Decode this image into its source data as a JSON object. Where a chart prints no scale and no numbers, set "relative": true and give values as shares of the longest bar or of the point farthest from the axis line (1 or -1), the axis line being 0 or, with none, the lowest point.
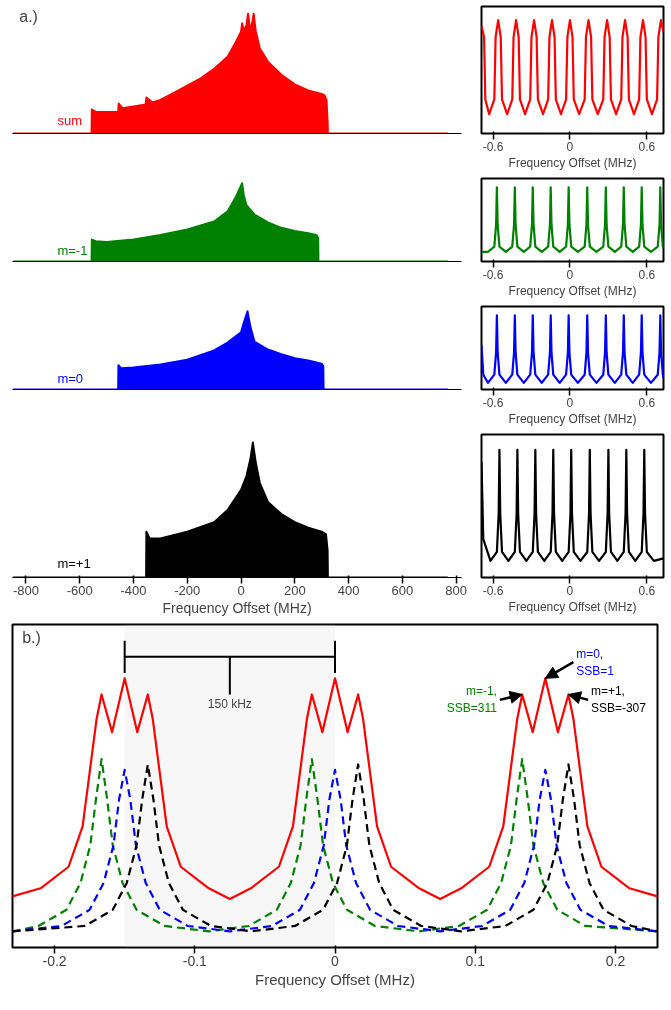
{
  "chart_data": [
    {
      "type": "area",
      "title": "a.)",
      "relative": true,
      "xlim": [
        -850,
        820
      ],
      "tick_labels": false,
      "series": [
        {
          "name": "sum",
          "color": "#ff0000",
          "x": [
            -846,
            -556,
            -555,
            -540,
            -470,
            -457,
            -455,
            -440,
            -360,
            -355,
            -352,
            -330,
            -300,
            -250,
            -200,
            -150,
            -100,
            -50,
            -20,
            0,
            4,
            10,
            20,
            26,
            32,
            40,
            47,
            55,
            70,
            100,
            150,
            200,
            250,
            300,
            310,
            318,
            322,
            323,
            767
          ],
          "values": [
            0,
            0,
            0.2,
            0.18,
            0.18,
            0.18,
            0.25,
            0.21,
            0.24,
            0.24,
            0.3,
            0.26,
            0.28,
            0.34,
            0.4,
            0.46,
            0.54,
            0.64,
            0.76,
            0.85,
            0.92,
            0.86,
            0.9,
            1.0,
            0.9,
            0.9,
            1.0,
            0.85,
            0.71,
            0.6,
            0.49,
            0.41,
            0.36,
            0.33,
            0.32,
            0.28,
            0.1,
            0,
            0
          ]
        }
      ]
    },
    {
      "type": "line",
      "relative": true,
      "xlim": [
        -0.69,
        0.73
      ],
      "xticks": [
        -0.6,
        0,
        0.6
      ],
      "xlabel": "Frequency Offset (MHz)",
      "series": [
        {
          "color": "#ff0000",
          "x": [
            -0.69,
            -0.67,
            -0.66,
            -0.63,
            -0.59,
            -0.58,
            -0.56,
            -0.54,
            -0.53,
            -0.49,
            -0.45,
            -0.44,
            -0.42,
            -0.4,
            -0.39,
            -0.35,
            -0.31,
            -0.3,
            -0.28,
            -0.26,
            -0.25,
            -0.21,
            -0.17,
            -0.16,
            -0.14,
            -0.12,
            -0.11,
            -0.07,
            -0.03,
            -0.02,
            0.0,
            0.02,
            0.03,
            0.072,
            0.115,
            0.125,
            0.145,
            0.165,
            0.175,
            0.217,
            0.26,
            0.27,
            0.29,
            0.31,
            0.32,
            0.36,
            0.4,
            0.41,
            0.43,
            0.45,
            0.46,
            0.5,
            0.54,
            0.55,
            0.57,
            0.59,
            0.6,
            0.64,
            0.68,
            0.69,
            0.71,
            0.73
          ],
          "values": [
            0.95,
            0.85,
            0.3,
            0.17,
            0.3,
            0.85,
            1,
            0.85,
            0.3,
            0.17,
            0.3,
            0.85,
            1,
            0.85,
            0.3,
            0.17,
            0.3,
            0.85,
            1,
            0.85,
            0.3,
            0.17,
            0.3,
            0.85,
            1,
            0.85,
            0.3,
            0.17,
            0.3,
            0.85,
            1,
            0.85,
            0.3,
            0.17,
            0.3,
            0.85,
            1,
            0.85,
            0.3,
            0.17,
            0.3,
            0.85,
            1,
            0.85,
            0.3,
            0.17,
            0.3,
            0.85,
            1,
            0.85,
            0.3,
            0.17,
            0.3,
            0.85,
            1,
            0.85,
            0.3,
            0.17,
            0.3,
            0.85,
            1,
            0.9
          ]
        }
      ]
    },
    {
      "type": "area",
      "relative": true,
      "xlim": [
        -850,
        820
      ],
      "tick_labels": false,
      "series": [
        {
          "name": "m=-1",
          "color": "#008000",
          "x": [
            -846,
            -556,
            -555,
            -540,
            -500,
            -400,
            -300,
            -200,
            -100,
            -50,
            -20,
            0,
            4,
            10,
            20,
            50,
            100,
            150,
            200,
            250,
            280,
            287,
            288,
            767
          ],
          "values": [
            0,
            0,
            0.28,
            0.26,
            0.25,
            0.28,
            0.34,
            0.41,
            0.51,
            0.64,
            0.82,
            0.97,
            1.0,
            0.85,
            0.72,
            0.6,
            0.5,
            0.43,
            0.39,
            0.36,
            0.34,
            0.3,
            0,
            0
          ]
        }
      ]
    },
    {
      "type": "line",
      "relative": true,
      "xlim": [
        -0.69,
        0.73
      ],
      "xticks": [
        -0.6,
        0,
        0.6
      ],
      "xlabel": "Frequency Offset (MHz)",
      "series": [
        {
          "color": "#008000",
          "x": [
            -0.69,
            -0.64,
            -0.59,
            -0.576,
            -0.57,
            -0.564,
            -0.55,
            -0.5,
            -0.45,
            -0.436,
            -0.43,
            -0.424,
            -0.41,
            -0.36,
            -0.31,
            -0.296,
            -0.29,
            -0.284,
            -0.27,
            -0.22,
            -0.17,
            -0.156,
            -0.15,
            -0.144,
            -0.13,
            -0.08,
            -0.03,
            -0.016,
            -0.01,
            -0.004,
            0.01,
            0.062,
            0.115,
            0.129,
            0.135,
            0.141,
            0.155,
            0.207,
            0.26,
            0.274,
            0.28,
            0.286,
            0.3,
            0.35,
            0.4,
            0.414,
            0.42,
            0.426,
            0.44,
            0.49,
            0.54,
            0.554,
            0.56,
            0.566,
            0.58,
            0.632,
            0.685,
            0.699,
            0.705,
            0.711,
            0.725,
            0.73
          ],
          "values": [
            0.13,
            0.13,
            0.2,
            0.5,
            1,
            0.5,
            0.2,
            0.13,
            0.2,
            0.5,
            1,
            0.5,
            0.2,
            0.13,
            0.2,
            0.5,
            1,
            0.5,
            0.2,
            0.13,
            0.2,
            0.5,
            1,
            0.5,
            0.2,
            0.13,
            0.2,
            0.5,
            1,
            0.5,
            0.2,
            0.13,
            0.2,
            0.5,
            1,
            0.5,
            0.2,
            0.13,
            0.2,
            0.5,
            1,
            0.5,
            0.2,
            0.13,
            0.2,
            0.5,
            1,
            0.5,
            0.2,
            0.13,
            0.2,
            0.5,
            1,
            0.5,
            0.2,
            0.13,
            0.2,
            0.5,
            1,
            0.5,
            0.2,
            0.18
          ]
        }
      ]
    },
    {
      "type": "area",
      "relative": true,
      "xlim": [
        -850,
        820
      ],
      "tick_labels": false,
      "series": [
        {
          "name": "m=0",
          "color": "#0000ff",
          "x": [
            -846,
            -457,
            -456,
            -445,
            -400,
            -300,
            -200,
            -100,
            -50,
            0,
            10,
            24,
            35,
            50,
            100,
            150,
            200,
            250,
            300,
            306,
            307,
            767
          ],
          "values": [
            0,
            0,
            0.31,
            0.27,
            0.28,
            0.32,
            0.38,
            0.5,
            0.6,
            0.73,
            0.85,
            1.0,
            0.8,
            0.61,
            0.51,
            0.45,
            0.4,
            0.37,
            0.33,
            0.3,
            0,
            0
          ]
        }
      ]
    },
    {
      "type": "line",
      "relative": true,
      "xlim": [
        -0.69,
        0.73
      ],
      "xticks": [
        -0.6,
        0,
        0.6
      ],
      "xlabel": "Frequency Offset (MHz)",
      "series": [
        {
          "color": "#0000ff",
          "x": [
            -0.69,
            -0.676,
            -0.64,
            -0.59,
            -0.576,
            -0.57,
            -0.564,
            -0.55,
            -0.5,
            -0.45,
            -0.436,
            -0.43,
            -0.424,
            -0.41,
            -0.36,
            -0.31,
            -0.296,
            -0.29,
            -0.284,
            -0.27,
            -0.22,
            -0.17,
            -0.156,
            -0.15,
            -0.144,
            -0.13,
            -0.08,
            -0.03,
            -0.016,
            -0.01,
            -0.004,
            0.01,
            0.062,
            0.115,
            0.129,
            0.135,
            0.141,
            0.155,
            0.207,
            0.26,
            0.274,
            0.28,
            0.286,
            0.3,
            0.35,
            0.4,
            0.414,
            0.42,
            0.426,
            0.44,
            0.49,
            0.54,
            0.554,
            0.56,
            0.566,
            0.58,
            0.632,
            0.685,
            0.699,
            0.705,
            0.711,
            0.725,
            0.73
          ],
          "values": [
            0.6,
            0.2,
            0.09,
            0.2,
            0.5,
            1,
            0.5,
            0.2,
            0.09,
            0.2,
            0.5,
            1,
            0.5,
            0.2,
            0.09,
            0.2,
            0.5,
            1,
            0.5,
            0.2,
            0.09,
            0.2,
            0.5,
            1,
            0.5,
            0.2,
            0.09,
            0.2,
            0.5,
            1,
            0.5,
            0.2,
            0.09,
            0.2,
            0.5,
            1,
            0.5,
            0.2,
            0.09,
            0.2,
            0.5,
            1,
            0.5,
            0.2,
            0.09,
            0.2,
            0.5,
            1,
            0.5,
            0.2,
            0.09,
            0.2,
            0.5,
            1,
            0.5,
            0.2,
            0.09,
            0.2,
            0.5,
            1,
            0.5,
            0.2,
            0.15
          ]
        }
      ]
    },
    {
      "type": "area",
      "relative": true,
      "xlim": [
        -850,
        820
      ],
      "xticks": [
        -800,
        -600,
        -400,
        -200,
        0,
        200,
        400,
        600,
        800
      ],
      "xlabel": "Frequency Offset (MHz)",
      "series": [
        {
          "name": "m=+1",
          "color": "#000000",
          "x": [
            -846,
            -353,
            -352,
            -340,
            -300,
            -200,
            -100,
            -50,
            0,
            20,
            35,
            44,
            55,
            70,
            100,
            150,
            200,
            250,
            300,
            316,
            322,
            323,
            767
          ],
          "values": [
            0,
            0,
            0.34,
            0.29,
            0.29,
            0.34,
            0.41,
            0.5,
            0.65,
            0.75,
            0.88,
            1.0,
            0.85,
            0.7,
            0.56,
            0.47,
            0.41,
            0.37,
            0.34,
            0.32,
            0.2,
            0,
            0
          ]
        }
      ]
    },
    {
      "type": "line",
      "relative": true,
      "xlim": [
        -0.69,
        0.73
      ],
      "xticks": [
        -0.6,
        0,
        0.6
      ],
      "xlabel": "Frequency Offset (MHz)",
      "series": [
        {
          "color": "#000000",
          "x": [
            -0.69,
            -0.676,
            -0.62,
            -0.57,
            -0.556,
            -0.55,
            -0.544,
            -0.53,
            -0.48,
            -0.43,
            -0.416,
            -0.41,
            -0.404,
            -0.39,
            -0.34,
            -0.29,
            -0.276,
            -0.27,
            -0.264,
            -0.25,
            -0.2,
            -0.15,
            -0.136,
            -0.13,
            -0.124,
            -0.11,
            -0.06,
            -0.01,
            0.004,
            0.01,
            0.016,
            0.03,
            0.082,
            0.135,
            0.149,
            0.155,
            0.161,
            0.175,
            0.227,
            0.28,
            0.294,
            0.3,
            0.306,
            0.32,
            0.37,
            0.42,
            0.434,
            0.44,
            0.446,
            0.46,
            0.51,
            0.56,
            0.574,
            0.58,
            0.586,
            0.6,
            0.655,
            0.73
          ],
          "values": [
            0.9,
            0.3,
            0.13,
            0.2,
            0.5,
            1,
            0.5,
            0.2,
            0.13,
            0.2,
            0.5,
            1,
            0.5,
            0.2,
            0.13,
            0.2,
            0.5,
            1,
            0.5,
            0.2,
            0.13,
            0.2,
            0.5,
            1,
            0.5,
            0.2,
            0.13,
            0.2,
            0.5,
            1,
            0.5,
            0.2,
            0.13,
            0.2,
            0.5,
            1,
            0.5,
            0.2,
            0.13,
            0.2,
            0.5,
            1,
            0.5,
            0.2,
            0.13,
            0.2,
            0.5,
            1,
            0.5,
            0.2,
            0.13,
            0.2,
            0.5,
            1,
            0.5,
            0.2,
            0.13,
            0.15
          ]
        }
      ]
    },
    {
      "type": "line",
      "title": "b.)",
      "relative": true,
      "xlim": [
        -0.23,
        0.23
      ],
      "xticks": [
        -0.2,
        -0.1,
        0,
        0.1,
        0.2
      ],
      "xlabel": "Frequency Offset (MHz)",
      "bands": [
        {
          "axis": "x",
          "from": -0.15,
          "to": 0,
          "label": "150 kHz"
        }
      ],
      "annotations": [
        {
          "text": "m=-1,\nSSB=311",
          "x": 0.1335,
          "y": 0.94
        },
        {
          "text": "m=0,\nSSB=1",
          "x": 0.15,
          "y": 1.0
        },
        {
          "text": "m=+1,\nSSB=-307",
          "x": 0.1665,
          "y": 0.94
        }
      ],
      "series": [
        {
          "color": "#ff0000",
          "x": [
            -0.23,
            -0.21,
            -0.19,
            -0.18,
            -0.175,
            -0.17,
            -0.1665,
            -0.159,
            -0.15,
            -0.141,
            -0.1335,
            -0.13,
            -0.125,
            -0.12,
            -0.11,
            -0.09,
            -0.075,
            -0.06,
            -0.04,
            -0.03,
            -0.025,
            -0.02,
            -0.0165,
            -0.009,
            0,
            0.009,
            0.0165,
            0.02,
            0.025,
            0.03,
            0.04,
            0.06,
            0.075,
            0.09,
            0.11,
            0.12,
            0.125,
            0.13,
            0.1335,
            0.141,
            0.15,
            0.159,
            0.1665,
            0.17,
            0.175,
            0.18,
            0.19,
            0.21,
            0.23
          ],
          "values": [
            0.19,
            0.22,
            0.3,
            0.45,
            0.65,
            0.85,
            0.94,
            0.8,
            1.0,
            0.8,
            0.94,
            0.85,
            0.65,
            0.45,
            0.3,
            0.22,
            0.18,
            0.22,
            0.3,
            0.45,
            0.65,
            0.85,
            0.94,
            0.8,
            1.0,
            0.8,
            0.94,
            0.85,
            0.65,
            0.45,
            0.3,
            0.22,
            0.18,
            0.22,
            0.3,
            0.45,
            0.65,
            0.85,
            0.94,
            0.8,
            1.0,
            0.8,
            0.94,
            0.85,
            0.65,
            0.45,
            0.3,
            0.22,
            0.19
          ]
        },
        {
          "color": "#008000",
          "line_style": "dashed",
          "x": [
            -0.23,
            -0.2115,
            -0.1915,
            -0.1815,
            -0.1745,
            -0.1705,
            -0.1665,
            -0.1625,
            -0.1585,
            -0.1515,
            -0.1415,
            -0.1215,
            -0.09,
            -0.0615,
            -0.0415,
            -0.0315,
            -0.0245,
            -0.0205,
            -0.0165,
            -0.0125,
            -0.0085,
            -0.0015,
            0.0085,
            0.0285,
            0.06,
            0.0885,
            0.1085,
            0.1185,
            0.1255,
            0.1295,
            0.1335,
            0.1375,
            0.1415,
            0.1485,
            0.1585,
            0.1785,
            0.23
          ],
          "values": [
            0.06,
            0.08,
            0.14,
            0.24,
            0.38,
            0.55,
            0.7,
            0.55,
            0.38,
            0.24,
            0.14,
            0.08,
            0.06,
            0.08,
            0.14,
            0.24,
            0.38,
            0.55,
            0.7,
            0.55,
            0.38,
            0.24,
            0.14,
            0.08,
            0.06,
            0.08,
            0.14,
            0.24,
            0.38,
            0.55,
            0.7,
            0.55,
            0.38,
            0.24,
            0.14,
            0.08,
            0.06
          ]
        },
        {
          "color": "#0000ff",
          "line_style": "dashed",
          "x": [
            -0.23,
            -0.195,
            -0.175,
            -0.165,
            -0.158,
            -0.154,
            -0.15,
            -0.146,
            -0.142,
            -0.135,
            -0.125,
            -0.105,
            -0.075,
            -0.045,
            -0.025,
            -0.015,
            -0.008,
            -0.004,
            0,
            0.004,
            0.008,
            0.015,
            0.025,
            0.045,
            0.075,
            0.105,
            0.125,
            0.135,
            0.142,
            0.146,
            0.15,
            0.154,
            0.158,
            0.165,
            0.175,
            0.195,
            0.23
          ],
          "values": [
            0.06,
            0.08,
            0.14,
            0.24,
            0.38,
            0.55,
            0.66,
            0.55,
            0.38,
            0.24,
            0.14,
            0.08,
            0.06,
            0.08,
            0.14,
            0.24,
            0.38,
            0.55,
            0.66,
            0.55,
            0.38,
            0.24,
            0.14,
            0.08,
            0.06,
            0.08,
            0.14,
            0.24,
            0.38,
            0.55,
            0.66,
            0.55,
            0.38,
            0.24,
            0.14,
            0.08,
            0.06
          ]
        },
        {
          "color": "#000000",
          "line_style": "dashed",
          "x": [
            -0.23,
            -0.1785,
            -0.1585,
            -0.1485,
            -0.1415,
            -0.1375,
            -0.1335,
            -0.1295,
            -0.1255,
            -0.1185,
            -0.1085,
            -0.0885,
            -0.06,
            -0.0285,
            -0.0085,
            0.0015,
            0.0085,
            0.0125,
            0.0165,
            0.0205,
            0.0245,
            0.0315,
            0.0415,
            0.0615,
            0.09,
            0.1215,
            0.1415,
            0.1515,
            0.1585,
            0.1625,
            0.1665,
            0.1705,
            0.1745,
            0.1815,
            0.1915,
            0.2115,
            0.23
          ],
          "values": [
            0.06,
            0.08,
            0.14,
            0.24,
            0.38,
            0.55,
            0.68,
            0.55,
            0.38,
            0.24,
            0.14,
            0.08,
            0.06,
            0.08,
            0.14,
            0.24,
            0.38,
            0.55,
            0.68,
            0.55,
            0.38,
            0.24,
            0.14,
            0.08,
            0.06,
            0.08,
            0.14,
            0.24,
            0.38,
            0.55,
            0.68,
            0.55,
            0.38,
            0.24,
            0.14,
            0.08,
            0.06
          ]
        }
      ]
    }
  ]
}
